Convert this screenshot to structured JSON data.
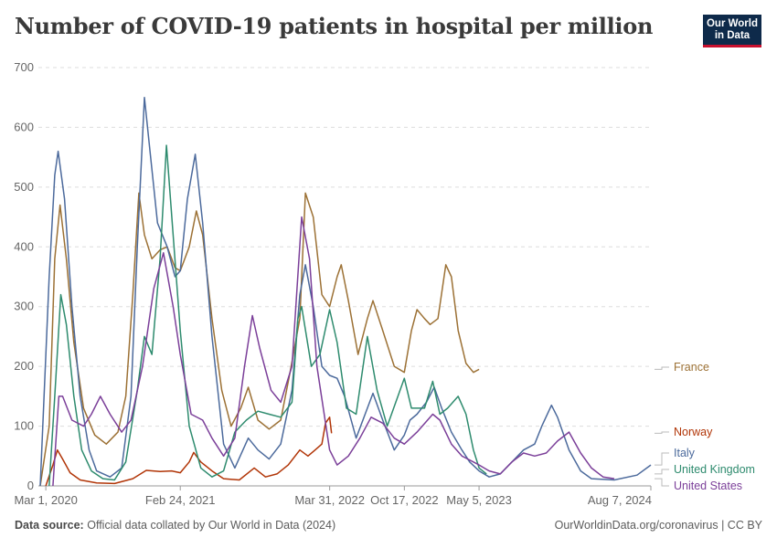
{
  "header": {
    "title": "Number of COVID-19 patients in hospital per million",
    "logo_line1": "Our World",
    "logo_line2": "in Data"
  },
  "footer": {
    "source_label": "Data source:",
    "source_text": "Official data collated by Our World in Data (2024)",
    "credit": "OurWorldinData.org/coronavirus | CC BY"
  },
  "chart_data": {
    "type": "line",
    "title": "Number of COVID-19 patients in hospital per million",
    "x_type": "date",
    "xlim": [
      "2020-02-15",
      "2024-08-07"
    ],
    "ylim": [
      0,
      700
    ],
    "y_ticks": [
      0,
      100,
      200,
      300,
      400,
      500,
      600,
      700
    ],
    "x_ticks": [
      {
        "date": "2020-03-01",
        "label": "Mar 1, 2020"
      },
      {
        "date": "2021-02-24",
        "label": "Feb 24, 2021"
      },
      {
        "date": "2022-03-31",
        "label": "Mar 31, 2022"
      },
      {
        "date": "2022-10-17",
        "label": "Oct 17, 2022"
      },
      {
        "date": "2023-05-05",
        "label": "May 5, 2023"
      },
      {
        "date": "2024-08-07",
        "label": "Aug 7, 2024"
      }
    ],
    "grid": "horizontal dashed",
    "legend": "right, end-of-line labels",
    "series": [
      {
        "name": "France",
        "color": "#9c7135",
        "points": [
          [
            "2020-02-15",
            0
          ],
          [
            "2020-03-10",
            100
          ],
          [
            "2020-03-25",
            380
          ],
          [
            "2020-04-08",
            470
          ],
          [
            "2020-04-25",
            380
          ],
          [
            "2020-05-15",
            240
          ],
          [
            "2020-06-10",
            130
          ],
          [
            "2020-07-10",
            85
          ],
          [
            "2020-08-10",
            70
          ],
          [
            "2020-09-10",
            90
          ],
          [
            "2020-10-01",
            150
          ],
          [
            "2020-10-20",
            320
          ],
          [
            "2020-11-05",
            490
          ],
          [
            "2020-11-20",
            420
          ],
          [
            "2020-12-10",
            380
          ],
          [
            "2021-01-01",
            395
          ],
          [
            "2021-01-20",
            400
          ],
          [
            "2021-02-10",
            365
          ],
          [
            "2021-02-24",
            360
          ],
          [
            "2021-03-20",
            400
          ],
          [
            "2021-04-08",
            460
          ],
          [
            "2021-04-25",
            420
          ],
          [
            "2021-05-20",
            280
          ],
          [
            "2021-06-15",
            160
          ],
          [
            "2021-07-10",
            100
          ],
          [
            "2021-08-05",
            130
          ],
          [
            "2021-08-25",
            165
          ],
          [
            "2021-09-20",
            110
          ],
          [
            "2021-10-20",
            95
          ],
          [
            "2021-11-20",
            110
          ],
          [
            "2021-12-15",
            190
          ],
          [
            "2022-01-10",
            280
          ],
          [
            "2022-01-25",
            490
          ],
          [
            "2022-02-15",
            450
          ],
          [
            "2022-03-10",
            320
          ],
          [
            "2022-03-31",
            300
          ],
          [
            "2022-04-20",
            350
          ],
          [
            "2022-05-01",
            370
          ],
          [
            "2022-05-20",
            310
          ],
          [
            "2022-06-15",
            220
          ],
          [
            "2022-07-10",
            280
          ],
          [
            "2022-07-25",
            310
          ],
          [
            "2022-08-20",
            260
          ],
          [
            "2022-09-20",
            200
          ],
          [
            "2022-10-17",
            190
          ],
          [
            "2022-11-05",
            260
          ],
          [
            "2022-11-20",
            295
          ],
          [
            "2022-12-10",
            280
          ],
          [
            "2022-12-25",
            270
          ],
          [
            "2023-01-15",
            280
          ],
          [
            "2023-02-05",
            370
          ],
          [
            "2023-02-20",
            350
          ],
          [
            "2023-03-10",
            260
          ],
          [
            "2023-03-31",
            205
          ],
          [
            "2023-04-20",
            190
          ],
          [
            "2023-05-05",
            195
          ]
        ]
      },
      {
        "name": "Norway",
        "color": "#b13507",
        "points": [
          [
            "2020-03-01",
            0
          ],
          [
            "2020-03-20",
            35
          ],
          [
            "2020-04-01",
            60
          ],
          [
            "2020-04-15",
            45
          ],
          [
            "2020-05-05",
            22
          ],
          [
            "2020-06-01",
            10
          ],
          [
            "2020-07-15",
            5
          ],
          [
            "2020-09-01",
            4
          ],
          [
            "2020-10-20",
            12
          ],
          [
            "2020-11-25",
            26
          ],
          [
            "2021-01-01",
            24
          ],
          [
            "2021-02-01",
            25
          ],
          [
            "2021-02-24",
            22
          ],
          [
            "2021-03-20",
            40
          ],
          [
            "2021-04-01",
            56
          ],
          [
            "2021-04-20",
            40
          ],
          [
            "2021-05-20",
            25
          ],
          [
            "2021-06-20",
            12
          ],
          [
            "2021-08-01",
            10
          ],
          [
            "2021-09-10",
            30
          ],
          [
            "2021-10-10",
            15
          ],
          [
            "2021-11-10",
            20
          ],
          [
            "2021-12-10",
            35
          ],
          [
            "2022-01-10",
            60
          ],
          [
            "2022-02-01",
            50
          ],
          [
            "2022-02-20",
            60
          ],
          [
            "2022-03-10",
            70
          ],
          [
            "2022-03-20",
            105
          ],
          [
            "2022-03-31",
            115
          ],
          [
            "2022-04-05",
            88
          ]
        ]
      },
      {
        "name": "Italy",
        "color": "#4c6a9c",
        "points": [
          [
            "2020-02-15",
            0
          ],
          [
            "2020-03-10",
            350
          ],
          [
            "2020-03-25",
            520
          ],
          [
            "2020-04-03",
            560
          ],
          [
            "2020-04-20",
            480
          ],
          [
            "2020-05-10",
            300
          ],
          [
            "2020-06-01",
            150
          ],
          [
            "2020-06-25",
            60
          ],
          [
            "2020-07-15",
            25
          ],
          [
            "2020-08-20",
            15
          ],
          [
            "2020-09-20",
            30
          ],
          [
            "2020-10-15",
            150
          ],
          [
            "2020-11-01",
            400
          ],
          [
            "2020-11-20",
            650
          ],
          [
            "2020-12-05",
            560
          ],
          [
            "2020-12-25",
            440
          ],
          [
            "2021-01-20",
            400
          ],
          [
            "2021-02-10",
            350
          ],
          [
            "2021-02-24",
            360
          ],
          [
            "2021-03-15",
            480
          ],
          [
            "2021-04-05",
            555
          ],
          [
            "2021-04-25",
            440
          ],
          [
            "2021-05-20",
            250
          ],
          [
            "2021-06-20",
            70
          ],
          [
            "2021-07-20",
            30
          ],
          [
            "2021-08-25",
            80
          ],
          [
            "2021-09-20",
            60
          ],
          [
            "2021-10-20",
            45
          ],
          [
            "2021-11-20",
            70
          ],
          [
            "2021-12-20",
            160
          ],
          [
            "2022-01-10",
            320
          ],
          [
            "2022-01-25",
            370
          ],
          [
            "2022-02-15",
            300
          ],
          [
            "2022-03-10",
            200
          ],
          [
            "2022-03-31",
            185
          ],
          [
            "2022-04-20",
            180
          ],
          [
            "2022-05-10",
            150
          ],
          [
            "2022-06-10",
            80
          ],
          [
            "2022-07-10",
            130
          ],
          [
            "2022-07-25",
            155
          ],
          [
            "2022-08-20",
            110
          ],
          [
            "2022-09-20",
            60
          ],
          [
            "2022-10-17",
            85
          ],
          [
            "2022-11-01",
            110
          ],
          [
            "2022-11-20",
            120
          ],
          [
            "2022-12-15",
            140
          ],
          [
            "2023-01-05",
            165
          ],
          [
            "2023-01-25",
            130
          ],
          [
            "2023-02-20",
            90
          ],
          [
            "2023-03-20",
            60
          ],
          [
            "2023-04-10",
            40
          ],
          [
            "2023-05-05",
            25
          ],
          [
            "2023-06-01",
            15
          ],
          [
            "2023-07-01",
            20
          ],
          [
            "2023-08-01",
            40
          ],
          [
            "2023-09-01",
            60
          ],
          [
            "2023-10-01",
            70
          ],
          [
            "2023-10-20",
            100
          ],
          [
            "2023-11-15",
            135
          ],
          [
            "2023-12-01",
            115
          ],
          [
            "2024-01-01",
            60
          ],
          [
            "2024-02-01",
            25
          ],
          [
            "2024-03-01",
            12
          ],
          [
            "2024-05-01",
            10
          ],
          [
            "2024-07-01",
            18
          ],
          [
            "2024-08-07",
            35
          ]
        ]
      },
      {
        "name": "United Kingdom",
        "color": "#2e8b6e",
        "points": [
          [
            "2020-03-10",
            0
          ],
          [
            "2020-03-25",
            150
          ],
          [
            "2020-04-10",
            320
          ],
          [
            "2020-04-25",
            270
          ],
          [
            "2020-05-15",
            150
          ],
          [
            "2020-06-05",
            60
          ],
          [
            "2020-07-01",
            25
          ],
          [
            "2020-08-01",
            12
          ],
          [
            "2020-09-01",
            10
          ],
          [
            "2020-10-01",
            40
          ],
          [
            "2020-11-01",
            160
          ],
          [
            "2020-11-20",
            250
          ],
          [
            "2020-12-10",
            220
          ],
          [
            "2021-01-01",
            380
          ],
          [
            "2021-01-18",
            570
          ],
          [
            "2021-02-05",
            420
          ],
          [
            "2021-02-24",
            260
          ],
          [
            "2021-03-20",
            100
          ],
          [
            "2021-04-20",
            30
          ],
          [
            "2021-05-20",
            15
          ],
          [
            "2021-06-20",
            25
          ],
          [
            "2021-07-20",
            90
          ],
          [
            "2021-08-20",
            110
          ],
          [
            "2021-09-20",
            125
          ],
          [
            "2021-10-20",
            120
          ],
          [
            "2021-11-20",
            115
          ],
          [
            "2021-12-20",
            140
          ],
          [
            "2022-01-05",
            280
          ],
          [
            "2022-01-15",
            300
          ],
          [
            "2022-02-10",
            200
          ],
          [
            "2022-03-05",
            220
          ],
          [
            "2022-03-31",
            295
          ],
          [
            "2022-04-20",
            240
          ],
          [
            "2022-05-15",
            130
          ],
          [
            "2022-06-10",
            120
          ],
          [
            "2022-07-10",
            250
          ],
          [
            "2022-08-05",
            160
          ],
          [
            "2022-09-01",
            100
          ],
          [
            "2022-10-17",
            180
          ],
          [
            "2022-11-05",
            130
          ],
          [
            "2022-12-10",
            130
          ],
          [
            "2023-01-01",
            175
          ],
          [
            "2023-01-20",
            120
          ],
          [
            "2023-02-10",
            130
          ],
          [
            "2023-03-10",
            150
          ],
          [
            "2023-03-31",
            120
          ],
          [
            "2023-04-20",
            60
          ],
          [
            "2023-05-05",
            30
          ],
          [
            "2023-05-25",
            20
          ]
        ]
      },
      {
        "name": "United States",
        "color": "#7b3f99",
        "points": [
          [
            "2020-03-20",
            0
          ],
          [
            "2020-04-05",
            150
          ],
          [
            "2020-04-15",
            150
          ],
          [
            "2020-05-10",
            110
          ],
          [
            "2020-06-10",
            100
          ],
          [
            "2020-07-01",
            120
          ],
          [
            "2020-07-25",
            150
          ],
          [
            "2020-08-20",
            120
          ],
          [
            "2020-09-20",
            90
          ],
          [
            "2020-10-15",
            110
          ],
          [
            "2020-11-15",
            200
          ],
          [
            "2020-12-15",
            330
          ],
          [
            "2021-01-10",
            390
          ],
          [
            "2021-02-05",
            300
          ],
          [
            "2021-02-24",
            220
          ],
          [
            "2021-03-25",
            120
          ],
          [
            "2021-04-25",
            110
          ],
          [
            "2021-05-20",
            80
          ],
          [
            "2021-06-20",
            50
          ],
          [
            "2021-07-20",
            80
          ],
          [
            "2021-08-15",
            200
          ],
          [
            "2021-09-05",
            285
          ],
          [
            "2021-09-25",
            230
          ],
          [
            "2021-10-25",
            160
          ],
          [
            "2021-11-20",
            140
          ],
          [
            "2021-12-20",
            200
          ],
          [
            "2022-01-15",
            450
          ],
          [
            "2022-02-05",
            380
          ],
          [
            "2022-02-25",
            200
          ],
          [
            "2022-03-31",
            60
          ],
          [
            "2022-04-20",
            35
          ],
          [
            "2022-05-20",
            50
          ],
          [
            "2022-06-20",
            80
          ],
          [
            "2022-07-20",
            115
          ],
          [
            "2022-08-20",
            105
          ],
          [
            "2022-09-20",
            80
          ],
          [
            "2022-10-17",
            70
          ],
          [
            "2022-11-20",
            90
          ],
          [
            "2023-01-01",
            120
          ],
          [
            "2023-01-20",
            110
          ],
          [
            "2023-02-20",
            70
          ],
          [
            "2023-03-20",
            50
          ],
          [
            "2023-04-20",
            40
          ],
          [
            "2023-05-05",
            35
          ],
          [
            "2023-06-01",
            25
          ],
          [
            "2023-07-01",
            20
          ],
          [
            "2023-08-01",
            40
          ],
          [
            "2023-09-01",
            55
          ],
          [
            "2023-10-01",
            50
          ],
          [
            "2023-11-01",
            55
          ],
          [
            "2023-12-01",
            75
          ],
          [
            "2024-01-01",
            90
          ],
          [
            "2024-02-01",
            55
          ],
          [
            "2024-03-01",
            30
          ],
          [
            "2024-04-01",
            15
          ],
          [
            "2024-05-01",
            12
          ]
        ]
      }
    ]
  }
}
